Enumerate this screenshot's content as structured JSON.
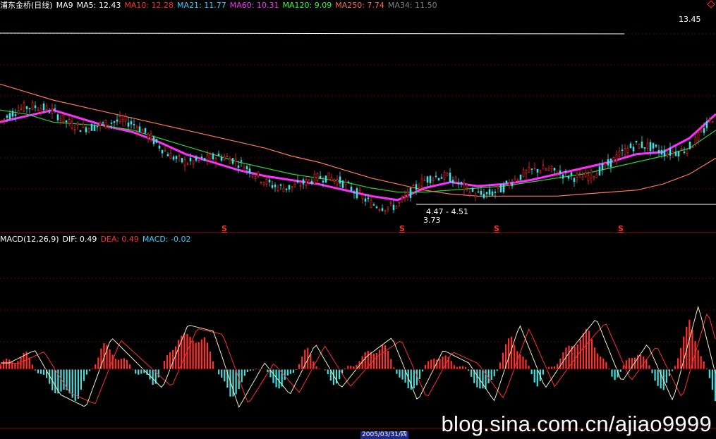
{
  "stock_title": "浦东金桥(日线)",
  "ma_legend": [
    {
      "label": "MA9",
      "value": "",
      "color": "#ffffff"
    },
    {
      "label": "MA5:",
      "value": "12.43",
      "color": "#ffffff"
    },
    {
      "label": "MA10:",
      "value": "12.28",
      "color": "#ff3030"
    },
    {
      "label": "MA21:",
      "value": "11.77",
      "color": "#30d0ff"
    },
    {
      "label": "MA60:",
      "value": "10.31",
      "color": "#ff30ff"
    },
    {
      "label": "MA120:",
      "value": "9.09",
      "color": "#30ff30"
    },
    {
      "label": "MA250:",
      "value": "7.74",
      "color": "#ff6a4a"
    },
    {
      "label": "MA34:",
      "value": "11.50",
      "color": "#808080"
    }
  ],
  "macd_legend": [
    {
      "label": "MACD(12,26,9)",
      "value": "",
      "color": "#ffffff"
    },
    {
      "label": "DIF:",
      "value": "0.49",
      "color": "#ffffff"
    },
    {
      "label": "DEA:",
      "value": "0.49",
      "color": "#ff3030"
    },
    {
      "label": "MACD:",
      "value": "-0.02",
      "color": "#30d0ff"
    }
  ],
  "annotations": {
    "high_label": "13.45",
    "range_label": "4.47 - 4.51",
    "low_label": "3.73",
    "s_marker": "S"
  },
  "date_cursor": "2005/03/31/四",
  "watermark": "blog.sina.com.cn/ajiao9999",
  "colors": {
    "up": "#ff3030",
    "down": "#40e0e0",
    "ma_short": "#ffffff",
    "ma_mid": "#ff30ff",
    "ma_long": "#30d030",
    "ma_year": "#ff7a50"
  },
  "chart_data": [
    {
      "type": "line",
      "name_shown": "浦东金桥(日线)",
      "series": [
        {
          "name": "MA60",
          "values": [
            8.6,
            8.9,
            9.2,
            8.8,
            8.4,
            8.1,
            7.6,
            7.0,
            6.6,
            6.2,
            5.9,
            5.7,
            5.5,
            5.2,
            4.9,
            4.7,
            5.3,
            5.6,
            5.4,
            5.5,
            5.7,
            6.0,
            6.3,
            6.6,
            7.0,
            7.1,
            7.8,
            9.0
          ]
        },
        {
          "name": "MA120",
          "values": [
            9.2,
            9.0,
            8.6,
            8.5,
            8.4,
            8.2,
            7.8,
            7.4,
            7.0,
            6.6,
            6.3,
            6.0,
            5.8,
            5.6,
            5.3,
            5.1,
            5.1,
            5.2,
            5.3,
            5.4,
            5.6,
            5.8,
            6.0,
            6.3,
            6.6,
            6.9,
            7.3,
            8.2
          ]
        },
        {
          "name": "MA250",
          "values": [
            10.5,
            10.1,
            9.7,
            9.4,
            9.1,
            8.8,
            8.5,
            8.2,
            7.9,
            7.6,
            7.3,
            6.9,
            6.6,
            6.2,
            5.8,
            5.5,
            5.2,
            5.0,
            4.9,
            4.9,
            4.9,
            4.9,
            5.0,
            5.1,
            5.2,
            5.5,
            6.0,
            6.8
          ]
        }
      ],
      "price_labels": [
        "13.45",
        "4.47 - 4.51",
        "3.73"
      ]
    },
    {
      "type": "bar",
      "name_shown": "MACD(12,26,9)",
      "values": [
        0.1,
        0.3,
        -0.4,
        -0.6,
        0.5,
        0.1,
        -0.3,
        0.7,
        0.6,
        -0.6,
        0.1,
        -0.4,
        0.4,
        -0.3,
        0.2,
        0.5,
        -0.5,
        0.3,
        0.1,
        -0.5,
        0.7,
        -0.3,
        0.3,
        0.8,
        -0.2,
        0.4,
        -0.5,
        1.0,
        -0.6
      ],
      "dif": 0.49,
      "dea": 0.49,
      "macd": -0.02
    }
  ]
}
